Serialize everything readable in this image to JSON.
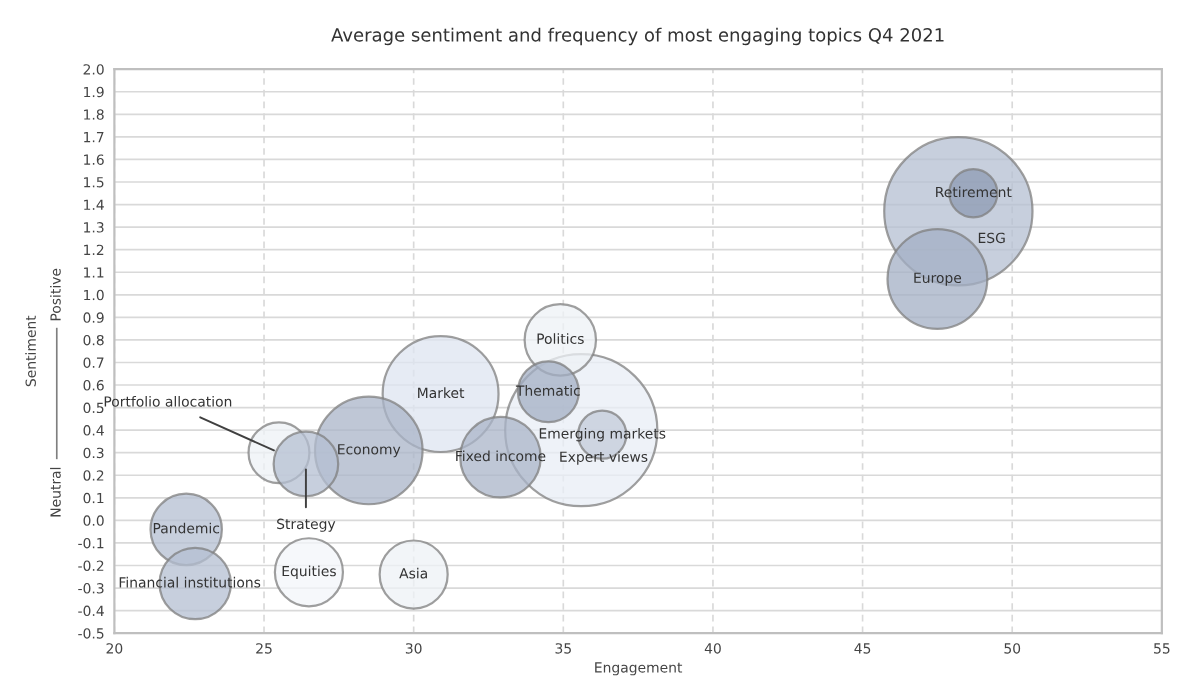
{
  "chart_data": {
    "type": "bubble",
    "title": "Average sentiment and frequency of most engaging topics Q4 2021",
    "xlabel": "Engagement",
    "ylabel": "Sentiment",
    "annotations": [
      "Neutral",
      "Positive"
    ],
    "xlim": [
      20,
      55
    ],
    "xticks": [
      20,
      25,
      30,
      35,
      40,
      45,
      50,
      55
    ],
    "ylim": [
      -0.5,
      2.0
    ],
    "yticks": [
      {
        "value": -0.5,
        "label": "-0.5"
      },
      {
        "value": -0.4,
        "label": "-0.4"
      },
      {
        "value": -0.3,
        "label": "-0.3"
      },
      {
        "value": -0.2,
        "label": "-0.2"
      },
      {
        "value": -0.1,
        "label": "-0.1"
      },
      {
        "value": 0.0,
        "label": "0.0"
      },
      {
        "value": 0.1,
        "label": "0.1"
      },
      {
        "value": 0.2,
        "label": "0.2"
      },
      {
        "value": 0.3,
        "label": "0.3"
      },
      {
        "value": 0.4,
        "label": "0.4"
      },
      {
        "value": 0.5,
        "label": "0.5"
      },
      {
        "value": 0.6,
        "label": "0.6"
      },
      {
        "value": 0.7,
        "label": "0.7"
      },
      {
        "value": 0.8,
        "label": "0.8"
      },
      {
        "value": 0.9,
        "label": "0.9"
      },
      {
        "value": 1.0,
        "label": "1.0"
      },
      {
        "value": 1.1,
        "label": "1.1"
      },
      {
        "value": 1.2,
        "label": "1.2"
      },
      {
        "value": 1.3,
        "label": "1.3"
      },
      {
        "value": 1.4,
        "label": "1.4"
      },
      {
        "value": 1.5,
        "label": "1.5"
      },
      {
        "value": 1.6,
        "label": "1.6"
      },
      {
        "value": 1.7,
        "label": "1.7"
      },
      {
        "value": 1.8,
        "label": "1.8"
      },
      {
        "value": 1.9,
        "label": "1.9"
      },
      {
        "value": 2.0,
        "label": "2.0"
      }
    ],
    "grid": true,
    "series": [
      {
        "name": "ESG",
        "color": "#b4bfd2",
        "x": [
          48.2
        ],
        "values": [
          1.37
        ],
        "sizes": [
          0.95
        ]
      },
      {
        "name": "Retirement",
        "color": "#8e9bb3",
        "x": [
          48.7
        ],
        "values": [
          1.45
        ],
        "sizes": [
          0.1
        ]
      },
      {
        "name": "Europe",
        "color": "#a3afc4",
        "x": [
          47.5
        ],
        "values": [
          1.07
        ],
        "sizes": [
          0.43
        ]
      },
      {
        "name": "Expert views",
        "color": "#e8edf5",
        "x": [
          35.6
        ],
        "values": [
          0.4
        ],
        "sizes": [
          1
        ]
      },
      {
        "name": "Emerging markets",
        "color": "#c3cbd9",
        "x": [
          36.3
        ],
        "values": [
          0.38
        ],
        "sizes": [
          0.1
        ]
      },
      {
        "name": "Politics",
        "color": "#eef1f6",
        "x": [
          34.9
        ],
        "values": [
          0.8
        ],
        "sizes": [
          0.22
        ]
      },
      {
        "name": "Thematic",
        "color": "#a3afc4",
        "x": [
          34.5
        ],
        "values": [
          0.57
        ],
        "sizes": [
          0.16
        ]
      },
      {
        "name": "Market",
        "color": "#dde4f0",
        "x": [
          30.9
        ],
        "values": [
          0.56
        ],
        "sizes": [
          0.58
        ]
      },
      {
        "name": "Fixed income",
        "color": "#a9b4c8",
        "x": [
          32.9
        ],
        "values": [
          0.28
        ],
        "sizes": [
          0.28
        ]
      },
      {
        "name": "Economy",
        "color": "#a9b4c8",
        "x": [
          28.5
        ],
        "values": [
          0.31
        ],
        "sizes": [
          0.5
        ]
      },
      {
        "name": "Portfolio allocation",
        "color": "#eef1f6",
        "x": [
          25.5
        ],
        "values": [
          0.3
        ],
        "sizes": [
          0.16
        ]
      },
      {
        "name": "Strategy",
        "color": "#b4bfd2",
        "x": [
          26.4
        ],
        "values": [
          0.25
        ],
        "sizes": [
          0.18
        ]
      },
      {
        "name": "Pandemic",
        "color": "#b4bfd2",
        "x": [
          22.4
        ],
        "values": [
          -0.04
        ],
        "sizes": [
          0.22
        ]
      },
      {
        "name": "Financial institutions",
        "color": "#b4bfd2",
        "x": [
          22.7
        ],
        "values": [
          -0.28
        ],
        "sizes": [
          0.22
        ]
      },
      {
        "name": "Equities",
        "color": "#f3f5f9",
        "x": [
          26.5
        ],
        "values": [
          -0.23
        ],
        "sizes": [
          0.2
        ]
      },
      {
        "name": "Asia",
        "color": "#eef1f6",
        "x": [
          30.0
        ],
        "values": [
          -0.24
        ],
        "sizes": [
          0.2
        ]
      }
    ]
  }
}
